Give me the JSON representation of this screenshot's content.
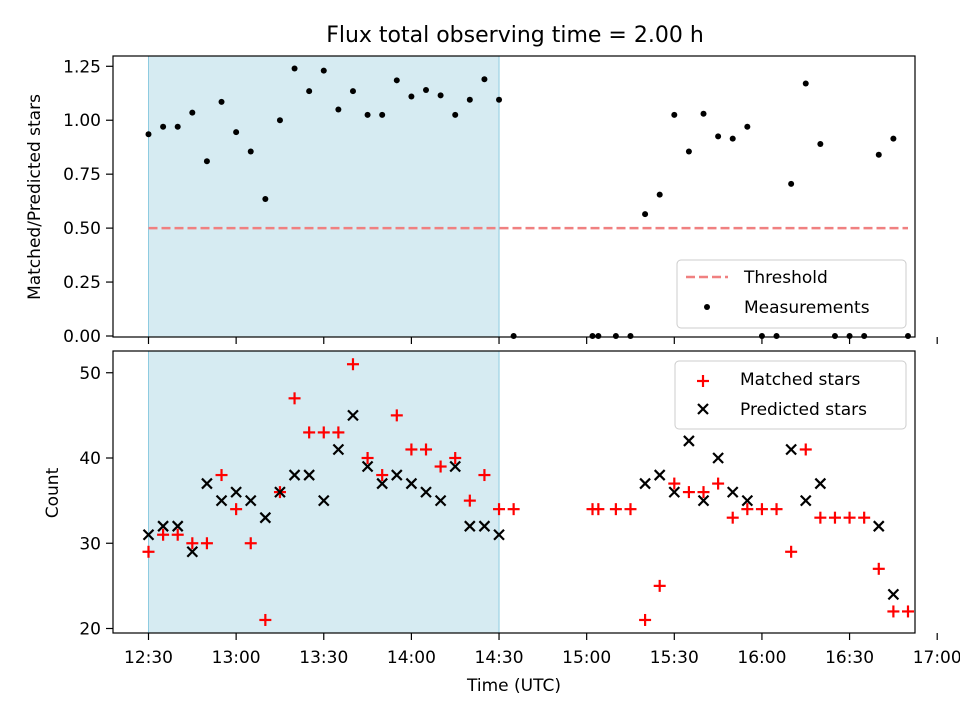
{
  "chart_data": [
    {
      "type": "scatter",
      "title": "Flux total observing time = 2.00 h",
      "xlabel": "",
      "ylabel": "Matched/Predicted stars",
      "xlim_min": [
        0,
        270
      ],
      "ylim": [
        0,
        1.3
      ],
      "yticks": [
        0,
        0.25,
        0.5,
        0.75,
        1.0,
        1.25
      ],
      "ytick_labels": [
        "0.00",
        "0.25",
        "0.50",
        "0.75",
        "1.00",
        "1.25"
      ],
      "shaded_region_min": [
        0,
        120
      ],
      "threshold": {
        "name": "Threshold",
        "value": 0.5,
        "x_range_min": [
          0,
          260
        ],
        "color": "#f08080"
      },
      "legend": [
        "Threshold",
        "Measurements"
      ],
      "legend_position": "lower-right",
      "series": [
        {
          "name": "Measurements",
          "color": "#000000",
          "x_min": [
            0,
            5,
            10,
            15,
            20,
            25,
            30,
            35,
            40,
            45,
            50,
            55,
            60,
            65,
            70,
            75,
            80,
            85,
            90,
            95,
            100,
            105,
            110,
            115,
            120,
            125,
            152,
            154,
            160,
            165,
            170,
            175,
            180,
            185,
            190,
            195,
            200,
            205,
            210,
            215,
            220,
            225,
            230,
            235,
            240,
            245,
            250,
            255,
            260
          ],
          "y": [
            0.935,
            0.97,
            0.97,
            1.035,
            0.81,
            1.085,
            0.945,
            0.855,
            0.635,
            1.0,
            1.24,
            1.135,
            1.23,
            1.05,
            1.135,
            1.025,
            1.025,
            1.185,
            1.11,
            1.14,
            1.115,
            1.025,
            1.095,
            1.19,
            1.095,
            0.0,
            0.0,
            0.0,
            0.0,
            0.0,
            0.565,
            0.655,
            1.025,
            0.855,
            1.03,
            0.925,
            0.915,
            0.97,
            0.0,
            0.0,
            0.705,
            1.17,
            0.89,
            0.0,
            0.0,
            0.0,
            0.84,
            0.915,
            0.0
          ]
        }
      ]
    },
    {
      "type": "scatter",
      "title": "",
      "xlabel": "Time (UTC)",
      "ylabel": "Count",
      "xlim_min": [
        0,
        270
      ],
      "xticks_min": [
        0,
        30,
        60,
        90,
        120,
        150,
        180,
        210,
        240,
        270
      ],
      "xtick_labels": [
        "12:30",
        "13:00",
        "13:30",
        "14:00",
        "14:30",
        "15:00",
        "15:30",
        "16:00",
        "16:30",
        "17:00"
      ],
      "ylim": [
        19.5,
        53
      ],
      "yticks": [
        20,
        30,
        40,
        50
      ],
      "ytick_labels": [
        "20",
        "30",
        "40",
        "50"
      ],
      "shaded_region_min": [
        0,
        120
      ],
      "legend": [
        "Matched stars",
        "Predicted stars"
      ],
      "legend_position": "top-right",
      "series": [
        {
          "name": "Matched stars",
          "marker": "plus",
          "color": "#ff0000",
          "x_min": [
            0,
            5,
            10,
            15,
            20,
            25,
            30,
            35,
            40,
            45,
            50,
            55,
            60,
            65,
            70,
            75,
            80,
            85,
            90,
            95,
            100,
            105,
            110,
            115,
            120,
            125,
            152,
            154,
            160,
            165,
            170,
            175,
            180,
            185,
            190,
            195,
            200,
            205,
            210,
            215,
            220,
            225,
            230,
            235,
            240,
            245,
            250,
            255,
            260
          ],
          "y": [
            29,
            31,
            31,
            30,
            30,
            38,
            34,
            30,
            21,
            36,
            47,
            43,
            43,
            43,
            51,
            40,
            38,
            45,
            41,
            41,
            39,
            40,
            35,
            38,
            34,
            34,
            34,
            34,
            34,
            34,
            21,
            25,
            37,
            36,
            36,
            37,
            33,
            34,
            34,
            34,
            29,
            41,
            33,
            33,
            33,
            33,
            27,
            22,
            22
          ]
        },
        {
          "name": "Predicted stars",
          "marker": "x",
          "color": "#000000",
          "x_min": [
            0,
            5,
            10,
            15,
            20,
            25,
            30,
            35,
            40,
            45,
            50,
            55,
            60,
            65,
            70,
            75,
            80,
            85,
            90,
            95,
            100,
            105,
            110,
            115,
            120,
            170,
            175,
            180,
            185,
            190,
            195,
            200,
            205,
            220,
            225,
            230,
            250,
            255
          ],
          "y": [
            31,
            32,
            32,
            29,
            37,
            35,
            36,
            35,
            33,
            36,
            38,
            38,
            35,
            41,
            45,
            39,
            37,
            38,
            37,
            36,
            35,
            39,
            32,
            32,
            31,
            37,
            38,
            36,
            42,
            35,
            40,
            36,
            35,
            41,
            35,
            37,
            32,
            24
          ]
        }
      ]
    }
  ]
}
